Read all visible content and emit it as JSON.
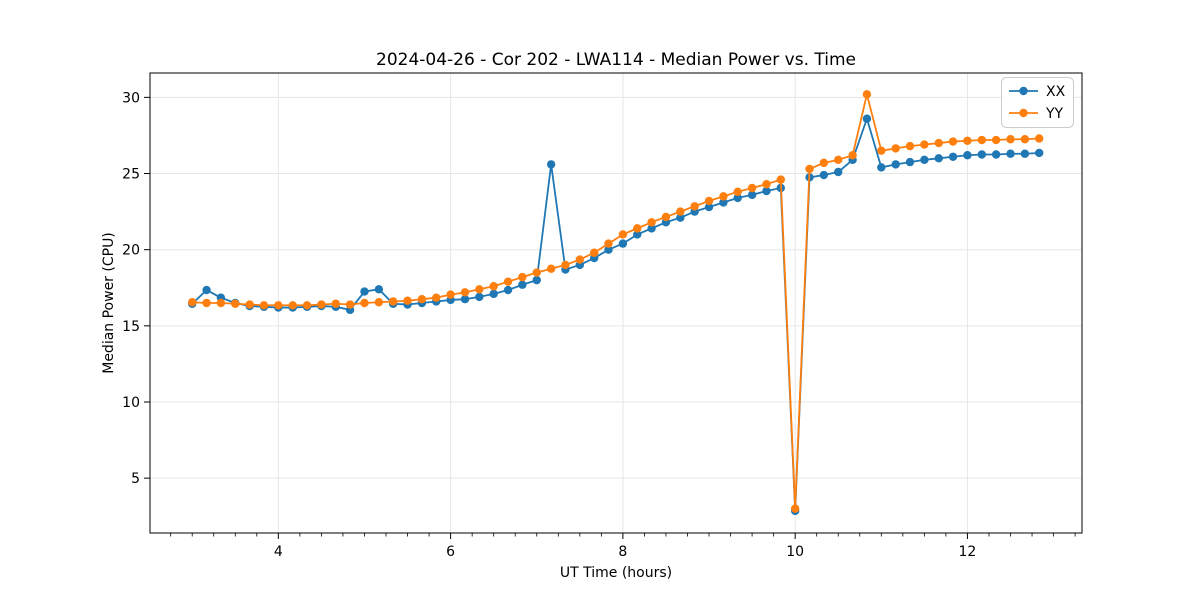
{
  "chart_data": {
    "type": "line",
    "title": "2024-04-26 - Cor 202 - LWA114 - Median Power vs. Time",
    "xlabel": "UT Time (hours)",
    "ylabel": "Median Power (CPU)",
    "xlim": [
      2.51,
      13.33
    ],
    "ylim": [
      1.4,
      31.6
    ],
    "x_major_ticks": [
      4,
      6,
      8,
      10,
      12
    ],
    "x_minor_tick_step": 0.25,
    "y_major_ticks": [
      5,
      10,
      15,
      20,
      25,
      30
    ],
    "grid": true,
    "grid_color": "#e6e6e6",
    "spine_color": "#000000",
    "legend": {
      "position": "upper right",
      "entries": [
        "XX",
        "YY"
      ]
    },
    "x": [
      3.0,
      3.167,
      3.333,
      3.5,
      3.667,
      3.833,
      4.0,
      4.167,
      4.333,
      4.5,
      4.667,
      4.833,
      5.0,
      5.167,
      5.333,
      5.5,
      5.667,
      5.833,
      6.0,
      6.167,
      6.333,
      6.5,
      6.667,
      6.833,
      7.0,
      7.167,
      7.333,
      7.5,
      7.667,
      7.833,
      8.0,
      8.167,
      8.333,
      8.5,
      8.667,
      8.833,
      9.0,
      9.167,
      9.333,
      9.5,
      9.667,
      9.833,
      10.0,
      10.167,
      10.333,
      10.5,
      10.667,
      10.833,
      11.0,
      11.167,
      11.333,
      11.5,
      11.667,
      11.833,
      12.0,
      12.167,
      12.333,
      12.5,
      12.667,
      12.833
    ],
    "series": [
      {
        "name": "XX",
        "color": "#1f77b4",
        "values": [
          16.45,
          17.35,
          16.85,
          16.5,
          16.3,
          16.25,
          16.2,
          16.2,
          16.25,
          16.3,
          16.25,
          16.05,
          17.25,
          17.4,
          16.45,
          16.4,
          16.5,
          16.6,
          16.7,
          16.75,
          16.9,
          17.1,
          17.35,
          17.7,
          18.0,
          25.6,
          18.7,
          19.0,
          19.45,
          20.0,
          20.4,
          21.0,
          21.4,
          21.8,
          22.1,
          22.5,
          22.8,
          23.1,
          23.4,
          23.6,
          23.85,
          24.05,
          2.85,
          24.75,
          24.9,
          25.1,
          25.9,
          28.6,
          25.4,
          25.6,
          25.75,
          25.9,
          26.0,
          26.1,
          26.2,
          26.25,
          26.25,
          26.3,
          26.3,
          26.35
        ]
      },
      {
        "name": "YY",
        "color": "#ff7f0e",
        "values": [
          16.55,
          16.5,
          16.5,
          16.45,
          16.4,
          16.35,
          16.35,
          16.35,
          16.35,
          16.4,
          16.45,
          16.4,
          16.5,
          16.55,
          16.6,
          16.65,
          16.75,
          16.85,
          17.05,
          17.2,
          17.4,
          17.6,
          17.9,
          18.2,
          18.5,
          18.75,
          19.0,
          19.35,
          19.8,
          20.4,
          21.0,
          21.4,
          21.8,
          22.15,
          22.5,
          22.85,
          23.2,
          23.5,
          23.8,
          24.05,
          24.3,
          24.6,
          3.0,
          25.3,
          25.7,
          25.9,
          26.2,
          30.2,
          26.5,
          26.65,
          26.8,
          26.9,
          27.0,
          27.1,
          27.15,
          27.2,
          27.2,
          27.25,
          27.25,
          27.3
        ]
      }
    ]
  }
}
